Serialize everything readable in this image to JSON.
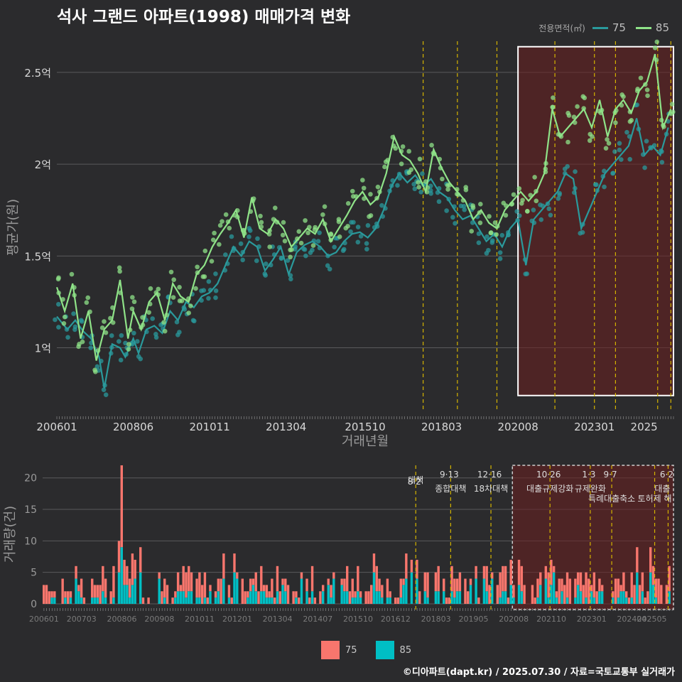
{
  "title": "석사 그랜드 아파트(1998) 매매가격 변화",
  "legend_top": {
    "title": "전용면적(㎡)",
    "items": [
      {
        "label": "75",
        "color": "#2a9a9c"
      },
      {
        "label": "85",
        "color": "#8fe388"
      }
    ]
  },
  "legend_bottom": {
    "items": [
      {
        "label": "75",
        "color": "#f8766d"
      },
      {
        "label": "85",
        "color": "#00bfc4"
      }
    ]
  },
  "footer": "©디아파트(dapt.kr) / 2025.07.30 / 자료=국토교통부 실거래가",
  "chart_data": [
    {
      "type": "line",
      "title": "석사 그랜드 아파트(1998) 매매가격 변화",
      "xlabel": "거래년월",
      "ylabel": "평균가(원)",
      "x_ticks": [
        "200601",
        "200806",
        "201011",
        "201304",
        "201510",
        "201803",
        "202008",
        "202301",
        "2025"
      ],
      "y_ticks": [
        "1억",
        "1.5억",
        "2억",
        "2.5억"
      ],
      "y_tick_values": [
        1.0,
        1.5,
        2.0,
        2.5
      ],
      "xlim": [
        "2006-01",
        "2025-07"
      ],
      "ylim": [
        0.65,
        2.67
      ],
      "grid": "horizontal",
      "policy_lines": [
        "2017-08",
        "2018-09",
        "2019-12",
        "2021-10",
        "2023-01",
        "2023-09",
        "2025-01",
        "2025-06"
      ],
      "highlight_range": [
        "2020-08",
        "2025-07"
      ],
      "series": [
        {
          "name": "75",
          "points": [
            [
              "2006-01",
              1.17
            ],
            [
              "2006-05",
              1.1
            ],
            [
              "2006-08",
              1.15
            ],
            [
              "2006-11",
              1.09
            ],
            [
              "2007-02",
              1.05
            ],
            [
              "2007-05",
              0.95
            ],
            [
              "2007-07",
              0.78
            ],
            [
              "2007-10",
              1.02
            ],
            [
              "2008-01",
              1.0
            ],
            [
              "2008-03",
              0.95
            ],
            [
              "2008-06",
              1.05
            ],
            [
              "2008-08",
              0.97
            ],
            [
              "2008-11",
              1.1
            ],
            [
              "2009-02",
              1.12
            ],
            [
              "2009-05",
              1.08
            ],
            [
              "2009-08",
              1.2
            ],
            [
              "2009-11",
              1.15
            ],
            [
              "2010-02",
              1.25
            ],
            [
              "2010-05",
              1.22
            ],
            [
              "2010-08",
              1.28
            ],
            [
              "2010-11",
              1.3
            ],
            [
              "2011-02",
              1.35
            ],
            [
              "2011-05",
              1.45
            ],
            [
              "2011-08",
              1.55
            ],
            [
              "2011-11",
              1.5
            ],
            [
              "2012-02",
              1.58
            ],
            [
              "2012-05",
              1.55
            ],
            [
              "2012-08",
              1.42
            ],
            [
              "2012-11",
              1.48
            ],
            [
              "2013-02",
              1.55
            ],
            [
              "2013-05",
              1.4
            ],
            [
              "2013-08",
              1.52
            ],
            [
              "2013-11",
              1.56
            ],
            [
              "2014-02",
              1.58
            ],
            [
              "2014-05",
              1.55
            ],
            [
              "2014-08",
              1.5
            ],
            [
              "2014-11",
              1.52
            ],
            [
              "2015-02",
              1.58
            ],
            [
              "2015-05",
              1.62
            ],
            [
              "2015-08",
              1.63
            ],
            [
              "2015-11",
              1.6
            ],
            [
              "2016-02",
              1.65
            ],
            [
              "2016-05",
              1.75
            ],
            [
              "2016-08",
              1.88
            ],
            [
              "2016-11",
              1.95
            ],
            [
              "2017-02",
              1.9
            ],
            [
              "2017-05",
              1.94
            ],
            [
              "2017-08",
              1.88
            ],
            [
              "2017-11",
              1.92
            ],
            [
              "2018-02",
              1.85
            ],
            [
              "2018-05",
              1.82
            ],
            [
              "2018-08",
              1.75
            ],
            [
              "2018-11",
              1.7
            ],
            [
              "2019-02",
              1.72
            ],
            [
              "2019-05",
              1.65
            ],
            [
              "2019-08",
              1.58
            ],
            [
              "2019-11",
              1.62
            ],
            [
              "2020-02",
              1.55
            ],
            [
              "2020-05",
              1.65
            ],
            [
              "2020-08",
              1.7
            ],
            [
              "2020-11",
              1.45
            ],
            [
              "2021-02",
              1.7
            ],
            [
              "2021-05",
              1.75
            ],
            [
              "2021-08",
              1.8
            ],
            [
              "2021-11",
              1.85
            ],
            [
              "2022-02",
              1.95
            ],
            [
              "2022-05",
              1.92
            ],
            [
              "2022-08",
              1.65
            ],
            [
              "2023-02",
              1.85
            ],
            [
              "2023-05",
              1.95
            ],
            [
              "2023-08",
              2.0
            ],
            [
              "2023-11",
              2.05
            ],
            [
              "2024-02",
              2.1
            ],
            [
              "2024-05",
              2.25
            ],
            [
              "2024-08",
              2.05
            ],
            [
              "2024-11",
              2.1
            ],
            [
              "2025-02",
              2.05
            ],
            [
              "2025-05",
              2.2
            ]
          ]
        },
        {
          "name": "85",
          "points": [
            [
              "2006-01",
              1.33
            ],
            [
              "2006-04",
              1.2
            ],
            [
              "2006-07",
              1.35
            ],
            [
              "2006-10",
              1.05
            ],
            [
              "2007-01",
              1.2
            ],
            [
              "2007-04",
              0.93
            ],
            [
              "2007-07",
              1.1
            ],
            [
              "2007-10",
              1.15
            ],
            [
              "2008-01",
              1.37
            ],
            [
              "2008-04",
              1.05
            ],
            [
              "2008-06",
              1.2
            ],
            [
              "2008-09",
              1.1
            ],
            [
              "2008-12",
              1.25
            ],
            [
              "2009-03",
              1.3
            ],
            [
              "2009-06",
              1.15
            ],
            [
              "2009-09",
              1.35
            ],
            [
              "2009-12",
              1.28
            ],
            [
              "2010-03",
              1.25
            ],
            [
              "2010-06",
              1.4
            ],
            [
              "2010-09",
              1.45
            ],
            [
              "2010-12",
              1.55
            ],
            [
              "2011-03",
              1.62
            ],
            [
              "2011-06",
              1.68
            ],
            [
              "2011-09",
              1.75
            ],
            [
              "2011-12",
              1.6
            ],
            [
              "2012-03",
              1.82
            ],
            [
              "2012-06",
              1.65
            ],
            [
              "2012-09",
              1.62
            ],
            [
              "2012-12",
              1.7
            ],
            [
              "2013-03",
              1.65
            ],
            [
              "2013-06",
              1.55
            ],
            [
              "2013-09",
              1.6
            ],
            [
              "2013-12",
              1.65
            ],
            [
              "2014-03",
              1.62
            ],
            [
              "2014-06",
              1.7
            ],
            [
              "2014-09",
              1.58
            ],
            [
              "2014-12",
              1.65
            ],
            [
              "2015-03",
              1.72
            ],
            [
              "2015-06",
              1.8
            ],
            [
              "2015-09",
              1.85
            ],
            [
              "2015-12",
              1.78
            ],
            [
              "2016-03",
              1.82
            ],
            [
              "2016-06",
              1.95
            ],
            [
              "2016-09",
              2.15
            ],
            [
              "2016-12",
              2.05
            ],
            [
              "2017-03",
              2.02
            ],
            [
              "2017-06",
              1.95
            ],
            [
              "2017-09",
              1.85
            ],
            [
              "2017-12",
              2.08
            ],
            [
              "2018-03",
              1.98
            ],
            [
              "2018-06",
              1.9
            ],
            [
              "2018-09",
              1.85
            ],
            [
              "2018-12",
              1.8
            ],
            [
              "2019-03",
              1.7
            ],
            [
              "2019-06",
              1.75
            ],
            [
              "2019-09",
              1.68
            ],
            [
              "2019-12",
              1.65
            ],
            [
              "2020-03",
              1.75
            ],
            [
              "2020-06",
              1.8
            ],
            [
              "2020-09",
              1.85
            ],
            [
              "2020-12",
              1.8
            ],
            [
              "2021-03",
              1.85
            ],
            [
              "2021-06",
              1.95
            ],
            [
              "2021-09",
              2.3
            ],
            [
              "2021-12",
              2.15
            ],
            [
              "2022-03",
              2.2
            ],
            [
              "2022-06",
              2.25
            ],
            [
              "2022-09",
              2.3
            ],
            [
              "2022-12",
              2.2
            ],
            [
              "2023-03",
              2.35
            ],
            [
              "2023-06",
              2.15
            ],
            [
              "2023-09",
              2.3
            ],
            [
              "2023-12",
              2.35
            ],
            [
              "2024-03",
              2.28
            ],
            [
              "2024-06",
              2.4
            ],
            [
              "2024-09",
              2.45
            ],
            [
              "2024-12",
              2.6
            ],
            [
              "2025-03",
              2.2
            ],
            [
              "2025-06",
              2.3
            ]
          ]
        }
      ]
    },
    {
      "type": "bar",
      "ylabel": "거래량(건)",
      "y_ticks": [
        "0",
        "5",
        "10",
        "15",
        "20"
      ],
      "ylim": [
        0,
        22
      ],
      "x_ticks": [
        "200601",
        "200703",
        "200806",
        "200908",
        "201011",
        "201201",
        "201304",
        "201407",
        "201510",
        "201612",
        "201803",
        "201905",
        "202008",
        "202110",
        "202301",
        "202404",
        "202505"
      ],
      "highlight_range": [
        "2020-08",
        "2025-07"
      ],
      "peak": {
        "month": "2008-06",
        "values": [
          13,
          9
        ],
        "total": 22
      },
      "series_names": [
        "75",
        "85"
      ],
      "policy_annotations": [
        {
          "month": "2017-08",
          "date": "8·2",
          "text": "대책"
        },
        {
          "month": "2018-09",
          "date": "9·13",
          "text": "종합대책"
        },
        {
          "month": "2019-12",
          "date": "12·16",
          "text": "18차대책"
        },
        {
          "month": "2021-10",
          "date": "10·26",
          "text": "대출규제강화"
        },
        {
          "month": "2023-01",
          "date": "1·3",
          "text": "규제완화"
        },
        {
          "month": "2023-09",
          "date": "9·7",
          "text": "특례대출축소"
        },
        {
          "month": "2025-01",
          "date": "",
          "text": "토허제 해"
        },
        {
          "month": "2025-06",
          "date": "6·2",
          "text": "대출"
        }
      ]
    }
  ]
}
